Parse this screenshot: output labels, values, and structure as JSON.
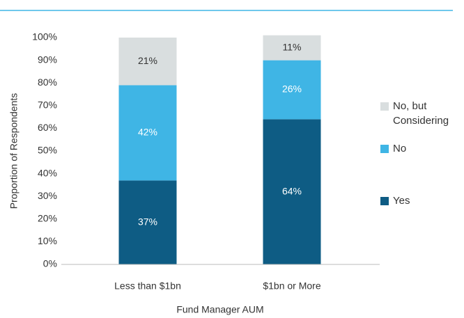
{
  "chart_data": {
    "type": "stacked_bar",
    "categories": [
      "Less than $1bn",
      "$1bn or More"
    ],
    "series": [
      {
        "name": "Yes",
        "color": "#0e5c84",
        "values": [
          37,
          64
        ],
        "value_labels": [
          "37%",
          "64%"
        ]
      },
      {
        "name": "No",
        "color": "#3fb5e5",
        "values": [
          42,
          26
        ],
        "value_labels": [
          "42%",
          "26%"
        ]
      },
      {
        "name": "No, but Considering",
        "color": "#d9dedf",
        "values": [
          21,
          11
        ],
        "value_labels": [
          "21%",
          "11%"
        ]
      }
    ],
    "xlabel": "Fund Manager AUM",
    "ylabel": "Proportion of Respondents",
    "ylim": [
      0,
      100
    ],
    "yticks": [
      {
        "value": 0,
        "label": "0%"
      },
      {
        "value": 10,
        "label": "10%"
      },
      {
        "value": 20,
        "label": "20%"
      },
      {
        "value": 30,
        "label": "30%"
      },
      {
        "value": 40,
        "label": "40%"
      },
      {
        "value": 50,
        "label": "50%"
      },
      {
        "value": 60,
        "label": "60%"
      },
      {
        "value": 70,
        "label": "70%"
      },
      {
        "value": 80,
        "label": "80%"
      },
      {
        "value": 90,
        "label": "90%"
      },
      {
        "value": 100,
        "label": "100%"
      }
    ],
    "grid": false,
    "legend": "right"
  }
}
